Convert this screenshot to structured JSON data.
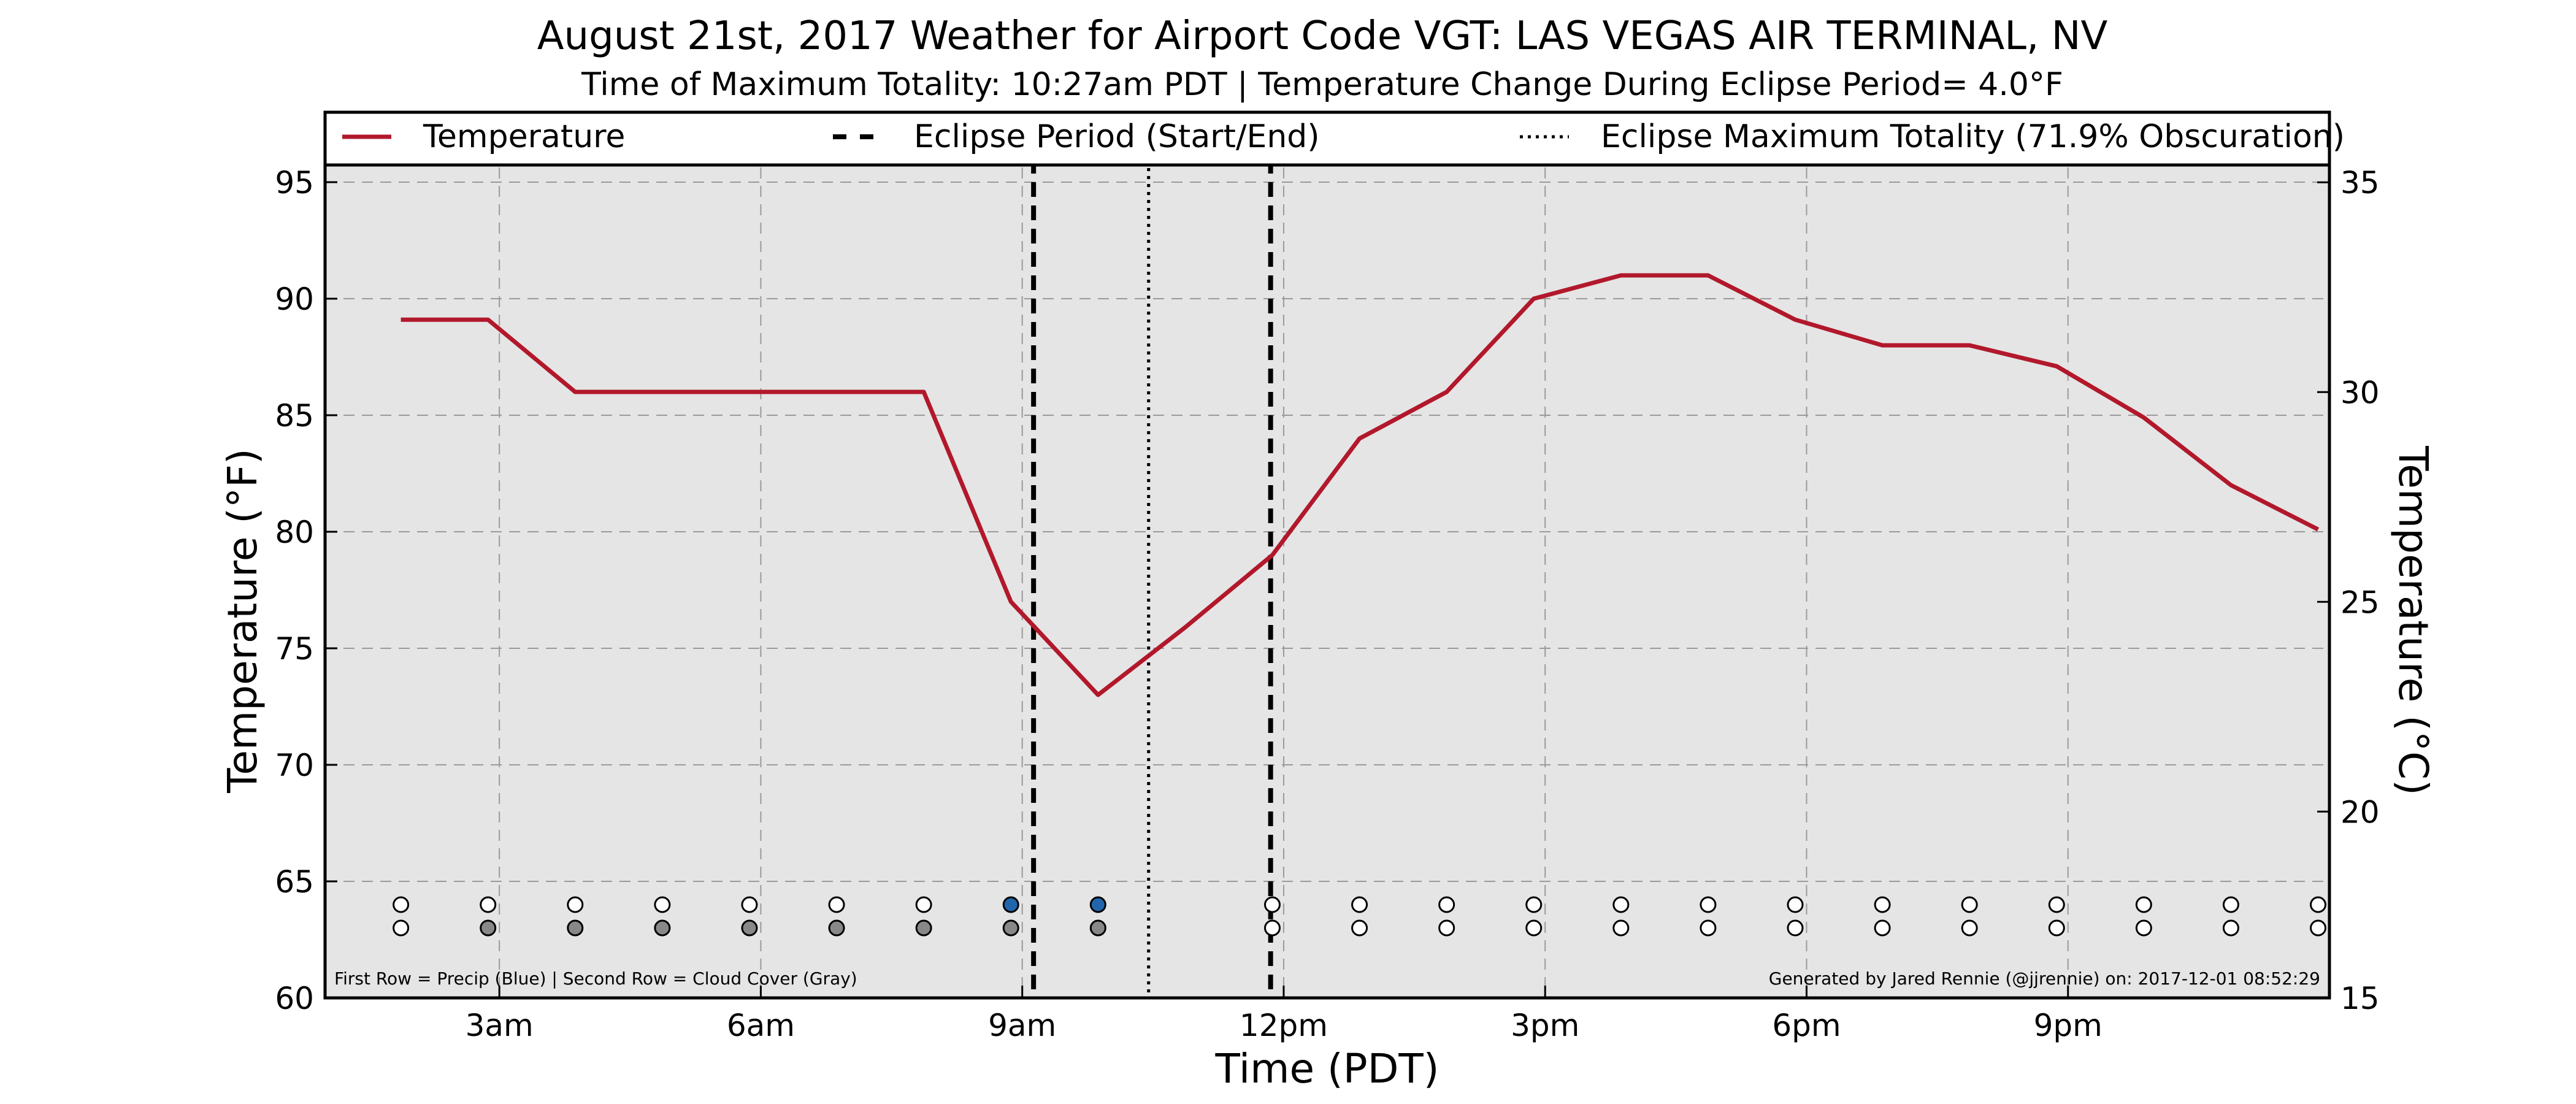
{
  "chart_data": {
    "type": "line",
    "title": "August 21st, 2017 Weather for Airport Code VGT: LAS VEGAS AIR TERMINAL, NV",
    "subtitle": "Time of Maximum Totality: 10:27am PDT | Temperature Change During Eclipse Period= 4.0°F",
    "xlabel": "Time (PDT)",
    "ylabel": "Temperature (°F)",
    "y2label": "Temperature (°C)",
    "x_ticks": [
      "3am",
      "6am",
      "9am",
      "12pm",
      "3pm",
      "6pm",
      "9pm"
    ],
    "x_tick_hours": [
      3,
      6,
      9,
      12,
      15,
      18,
      21
    ],
    "xlim": [
      1,
      24
    ],
    "ylim": [
      60,
      98
    ],
    "y_ticks": [
      60,
      65,
      70,
      75,
      80,
      85,
      90,
      95
    ],
    "y2lim": [
      15.56,
      36.67
    ],
    "y2_ticks": [
      15,
      20,
      25,
      30,
      35
    ],
    "grid": true,
    "legend_position": "top",
    "legend": [
      {
        "label": "Temperature",
        "style": "solid"
      },
      {
        "label": "Eclipse Period (Start/End)",
        "style": "dashed"
      },
      {
        "label": "Eclipse Maximum Totality (71.9% Obscuration)",
        "style": "dotted"
      }
    ],
    "series": [
      {
        "name": "Temperature",
        "color": "#b2182b",
        "x": [
          1.87,
          2.87,
          3.87,
          4.87,
          5.87,
          6.87,
          7.87,
          8.87,
          9.87,
          10.87,
          11.87,
          12.87,
          13.87,
          14.87,
          15.87,
          16.87,
          17.87,
          18.87,
          19.87,
          20.87,
          21.87,
          22.87,
          23.87
        ],
        "y": [
          89.1,
          89.1,
          86.0,
          86.0,
          86.0,
          86.0,
          86.0,
          77.0,
          73.0,
          75.9,
          79.0,
          84.0,
          86.0,
          90.0,
          91.0,
          91.0,
          89.1,
          88.0,
          88.0,
          87.1,
          84.9,
          82.0,
          80.1
        ]
      }
    ],
    "eclipse_start": 9.13,
    "eclipse_end": 11.85,
    "max_totality": 10.45,
    "precip_row": {
      "y": 64,
      "x": [
        1.87,
        2.87,
        3.87,
        4.87,
        5.87,
        6.87,
        7.87,
        8.87,
        9.87,
        11.87,
        12.87,
        13.87,
        14.87,
        15.87,
        16.87,
        17.87,
        18.87,
        19.87,
        20.87,
        21.87,
        22.87,
        23.87
      ],
      "colors": [
        "#ffffff",
        "#ffffff",
        "#ffffff",
        "#ffffff",
        "#ffffff",
        "#ffffff",
        "#ffffff",
        "#2166ac",
        "#2166ac",
        "#ffffff",
        "#ffffff",
        "#ffffff",
        "#ffffff",
        "#ffffff",
        "#ffffff",
        "#ffffff",
        "#ffffff",
        "#ffffff",
        "#ffffff",
        "#ffffff",
        "#ffffff",
        "#ffffff"
      ]
    },
    "cloud_row": {
      "y": 63,
      "x": [
        1.87,
        2.87,
        3.87,
        4.87,
        5.87,
        6.87,
        7.87,
        8.87,
        9.87,
        11.87,
        12.87,
        13.87,
        14.87,
        15.87,
        16.87,
        17.87,
        18.87,
        19.87,
        20.87,
        21.87,
        22.87,
        23.87
      ],
      "colors": [
        "#ffffff",
        "#888888",
        "#888888",
        "#888888",
        "#888888",
        "#888888",
        "#888888",
        "#888888",
        "#888888",
        "#ffffff",
        "#ffffff",
        "#ffffff",
        "#ffffff",
        "#ffffff",
        "#ffffff",
        "#ffffff",
        "#ffffff",
        "#ffffff",
        "#ffffff",
        "#ffffff",
        "#ffffff",
        "#ffffff"
      ]
    },
    "note_left": "First Row = Precip (Blue) | Second Row = Cloud Cover (Gray)",
    "note_right": "Generated by Jared Rennie (@jjrennie) on: 2017-12-01 08:52:29"
  }
}
